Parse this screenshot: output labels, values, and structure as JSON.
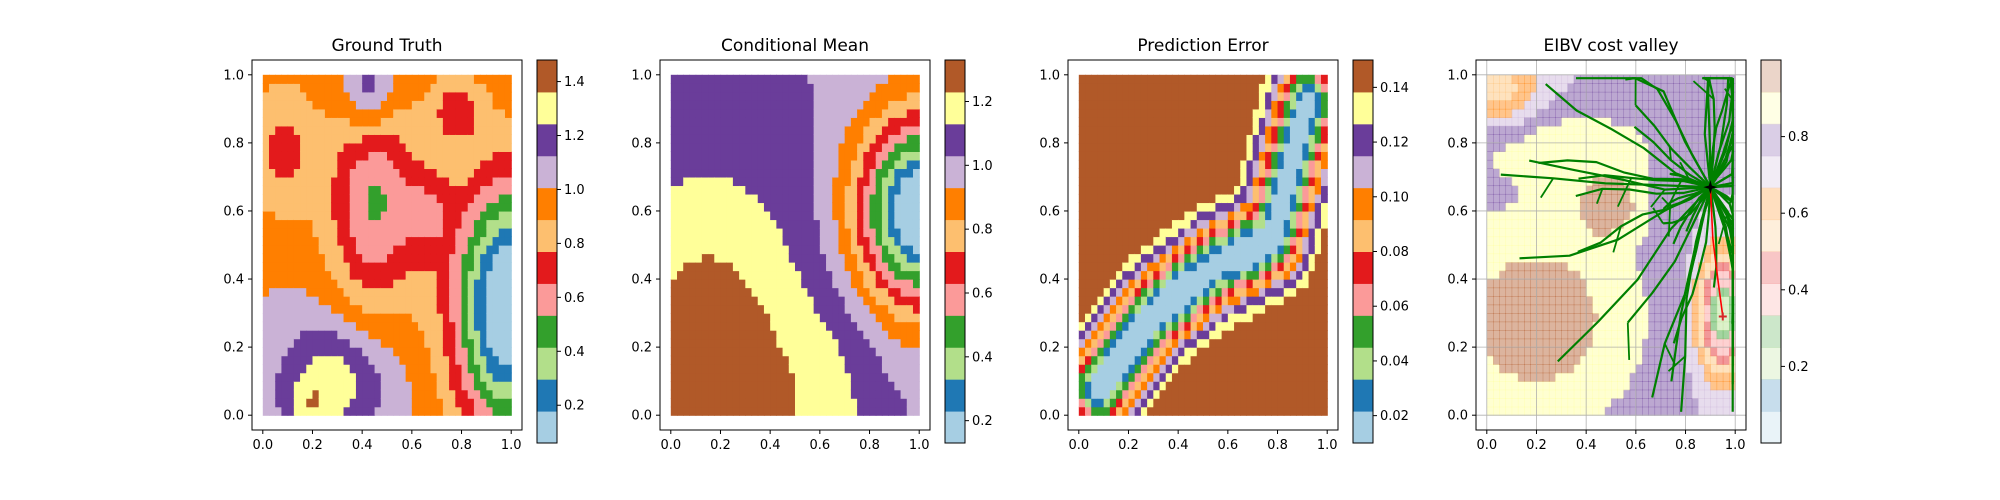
{
  "figure": {
    "width": 2000,
    "height": 500
  },
  "chart_data": [
    {
      "type": "heatmap",
      "title": "Ground Truth",
      "xlabel": "",
      "ylabel": "",
      "xlim": [
        0.0,
        1.0
      ],
      "ylim": [
        0.0,
        1.0
      ],
      "x_ticks": [
        "0.0",
        "0.2",
        "0.4",
        "0.6",
        "0.8",
        "1.0"
      ],
      "y_ticks": [
        "0.0",
        "0.2",
        "0.4",
        "0.6",
        "0.8",
        "1.0"
      ],
      "grid": false,
      "colorbar": {
        "colormap": "Paired",
        "range": [
          0.06,
          1.48
        ],
        "ticks": [
          "0.2",
          "0.4",
          "0.6",
          "0.8",
          "1.0",
          "1.2",
          "1.4"
        ]
      },
      "field": {
        "base": 1.0,
        "gaussians": [
          {
            "x": 1.0,
            "y": 0.32,
            "sx": 0.16,
            "sy": 0.26,
            "a": -1.05
          },
          {
            "x": 0.45,
            "y": 0.62,
            "sx": 0.13,
            "sy": 0.22,
            "a": -0.48
          },
          {
            "x": 0.43,
            "y": 0.95,
            "sx": 0.07,
            "sy": 0.09,
            "a": 0.28
          },
          {
            "x": 0.28,
            "y": 0.1,
            "sx": 0.16,
            "sy": 0.13,
            "a": 0.32
          },
          {
            "x": 0.18,
            "y": 0.02,
            "sx": 0.06,
            "sy": 0.05,
            "a": 0.15
          },
          {
            "x": 0.78,
            "y": 0.9,
            "sx": 0.08,
            "sy": 0.08,
            "a": -0.26
          },
          {
            "x": 0.08,
            "y": 0.78,
            "sx": 0.1,
            "sy": 0.15,
            "a": -0.26
          },
          {
            "x": 0.67,
            "y": 0.6,
            "sx": 0.07,
            "sy": 0.09,
            "a": -0.22
          }
        ]
      }
    },
    {
      "type": "heatmap",
      "title": "Conditional Mean",
      "xlabel": "",
      "ylabel": "",
      "xlim": [
        0.0,
        1.0
      ],
      "ylim": [
        0.0,
        1.0
      ],
      "x_ticks": [
        "0.0",
        "0.2",
        "0.4",
        "0.6",
        "0.8",
        "1.0"
      ],
      "y_ticks": [
        "0.0",
        "0.2",
        "0.4",
        "0.6",
        "0.8",
        "1.0"
      ],
      "grid": false,
      "colorbar": {
        "colormap": "Paired",
        "range": [
          0.13,
          1.33
        ],
        "ticks": [
          "0.2",
          "0.4",
          "0.6",
          "0.8",
          "1.0",
          "1.2"
        ]
      },
      "field": {
        "base": 1.02,
        "gaussians": [
          {
            "x": 1.0,
            "y": 0.6,
            "sx": 0.17,
            "sy": 0.19,
            "a": -0.95
          },
          {
            "x": 0.15,
            "y": 0.05,
            "sx": 0.3,
            "sy": 0.45,
            "a": 0.32
          },
          {
            "x": 0.65,
            "y": 0.05,
            "sx": 0.15,
            "sy": 0.2,
            "a": 0.08
          }
        ]
      }
    },
    {
      "type": "heatmap",
      "title": "Prediction Error",
      "xlabel": "",
      "ylabel": "",
      "xlim": [
        0.0,
        1.0
      ],
      "ylim": [
        0.0,
        1.0
      ],
      "x_ticks": [
        "0.0",
        "0.2",
        "0.4",
        "0.6",
        "0.8",
        "1.0"
      ],
      "y_ticks": [
        "0.0",
        "0.2",
        "0.4",
        "0.6",
        "0.8",
        "1.0"
      ],
      "grid": false,
      "colorbar": {
        "colormap": "Paired",
        "range": [
          0.01,
          0.15
        ],
        "ticks": [
          "0.02",
          "0.04",
          "0.06",
          "0.08",
          "0.10",
          "0.12",
          "0.14"
        ]
      },
      "field": {
        "base": 0.15,
        "track": [
          [
            0.08,
            0.08
          ],
          [
            0.3,
            0.3
          ],
          [
            0.55,
            0.44
          ],
          [
            0.78,
            0.52
          ],
          [
            0.85,
            0.72
          ],
          [
            0.92,
            0.92
          ]
        ],
        "track_sigma": 0.085,
        "track_depth": 0.14,
        "bumps": [
          {
            "x": 0.2,
            "y": 0.2,
            "s": 0.05,
            "a": 0.014
          },
          {
            "x": 0.4,
            "y": 0.35,
            "s": 0.05,
            "a": 0.014
          },
          {
            "x": 0.68,
            "y": 0.48,
            "s": 0.05,
            "a": 0.014
          }
        ]
      }
    },
    {
      "type": "heatmap",
      "title": "EIBV cost valley",
      "xlabel": "",
      "ylabel": "",
      "xlim": [
        0.0,
        1.0
      ],
      "ylim": [
        0.0,
        1.0
      ],
      "x_ticks": [
        "0.0",
        "0.2",
        "0.4",
        "0.6",
        "0.8",
        "1.0"
      ],
      "y_ticks": [
        "0.0",
        "0.2",
        "0.4",
        "0.6",
        "0.8",
        "1.0"
      ],
      "grid": true,
      "colorbar": {
        "colormap": "Paired",
        "alpha": 0.25,
        "range": [
          0.0,
          1.0
        ],
        "ticks": [
          "0.2",
          "0.4",
          "0.6",
          "0.8"
        ]
      },
      "field": {
        "base": 0.75,
        "gaussians": [
          {
            "x": 0.2,
            "y": 0.28,
            "sx": 0.32,
            "sy": 0.24,
            "a": 0.22
          },
          {
            "x": 0.32,
            "y": 0.8,
            "sx": 0.32,
            "sy": 0.08,
            "a": 0.12
          },
          {
            "x": 0.5,
            "y": 0.62,
            "sx": 0.1,
            "sy": 0.07,
            "a": 0.18
          },
          {
            "x": 0.95,
            "y": 0.3,
            "sx": 0.07,
            "sy": 0.12,
            "a": -0.55
          },
          {
            "x": 0.05,
            "y": 0.95,
            "sx": 0.12,
            "sy": 0.08,
            "a": -0.22
          }
        ]
      },
      "tree": {
        "root": [
          0.9,
          0.67
        ],
        "branches": 56,
        "seed": 7,
        "color": "#008000"
      },
      "markers": [
        {
          "kind": "start",
          "x": 0.9,
          "y": 0.67,
          "color": "#000000"
        },
        {
          "kind": "target",
          "x": 0.95,
          "y": 0.29,
          "color": "#d62728"
        }
      ],
      "path": {
        "points": [
          [
            0.9,
            0.67
          ],
          [
            0.91,
            0.52
          ],
          [
            0.93,
            0.4
          ],
          [
            0.95,
            0.29
          ]
        ],
        "color": "#ff0000"
      }
    }
  ]
}
